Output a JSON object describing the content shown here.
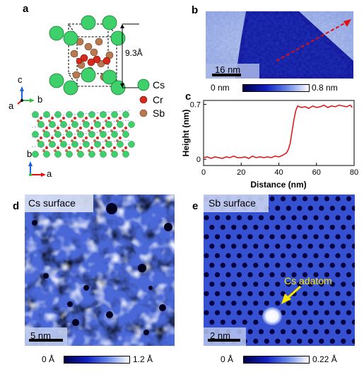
{
  "panels": {
    "a": {
      "label": "a",
      "height_label": "9.3Å",
      "legend": [
        {
          "name": "Cs",
          "color": "#3ed06a"
        },
        {
          "name": "Cr",
          "color": "#d42a1a"
        },
        {
          "name": "Sb",
          "color": "#b87850"
        }
      ],
      "axes_top": {
        "c": "c",
        "b": "b",
        "a": "a"
      },
      "axes_bottom": {
        "b": "b",
        "a": "a"
      }
    },
    "b": {
      "label": "b",
      "scale_bar": "16 nm",
      "cbar_min": "0 nm",
      "cbar_max": "0.8 nm"
    },
    "c": {
      "label": "c"
    },
    "d": {
      "label": "d",
      "title": "Cs surface",
      "scale_bar": "5 nm",
      "cbar_min": "0 Å",
      "cbar_max": "1.2 Å"
    },
    "e": {
      "label": "e",
      "title": "Sb surface",
      "annotation": "Cs adatom",
      "scale_bar": "2 nm",
      "cbar_min": "0 Å",
      "cbar_max": "0.22 Å"
    }
  },
  "colors": {
    "stm_dark": "#00004a",
    "stm_mid": "#3b4fc8",
    "stm_light": "#ffffff",
    "profile_line": "#e01010",
    "arrow": "#e01010",
    "annotation": "#ffe600"
  },
  "chart_data": {
    "type": "line",
    "xlabel": "Distance (nm)",
    "ylabel": "Height (nm)",
    "xlim": [
      0,
      80
    ],
    "ylim": [
      -0.08,
      0.75
    ],
    "xticks": [
      "0",
      "20",
      "40",
      "60",
      "80"
    ],
    "yticks": [
      "0",
      "0.7"
    ],
    "series": [
      {
        "x": [
          0,
          2,
          4,
          6,
          8,
          10,
          12,
          14,
          16,
          18,
          20,
          22,
          24,
          26,
          28,
          30,
          32,
          34,
          36,
          38,
          40,
          42,
          44,
          45,
          46,
          47,
          48,
          49,
          50,
          52,
          54,
          56,
          58,
          60,
          62,
          64,
          66,
          68,
          70,
          72,
          74,
          76,
          78,
          79
        ],
        "y": [
          0.02,
          0.03,
          0.01,
          0.03,
          0.02,
          0.01,
          0.03,
          0.02,
          0.04,
          0.02,
          0.02,
          0.03,
          0.01,
          0.04,
          0.02,
          0.03,
          0.02,
          0.03,
          0.02,
          0.04,
          0.03,
          0.05,
          0.08,
          0.12,
          0.2,
          0.35,
          0.5,
          0.62,
          0.68,
          0.66,
          0.67,
          0.65,
          0.68,
          0.66,
          0.67,
          0.69,
          0.66,
          0.68,
          0.67,
          0.69,
          0.68,
          0.67,
          0.69,
          0.66
        ]
      }
    ]
  }
}
